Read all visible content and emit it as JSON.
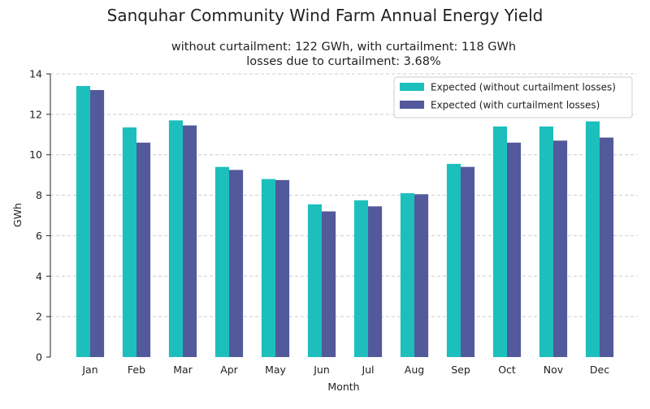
{
  "chart_data": {
    "type": "bar",
    "title": "Sanquhar Community Wind Farm Annual Energy Yield",
    "subtitle_lines": [
      "without curtailment: 122 GWh, with curtailment: 118 GWh",
      "losses due to curtailment: 3.68%"
    ],
    "xlabel": "Month",
    "ylabel": "GWh",
    "ylim": [
      0,
      14
    ],
    "yticks": [
      0,
      2,
      4,
      6,
      8,
      10,
      12,
      14
    ],
    "grid": "y, dashed",
    "legend_position": "top-right",
    "categories": [
      "Jan",
      "Feb",
      "Mar",
      "Apr",
      "May",
      "Jun",
      "Jul",
      "Aug",
      "Sep",
      "Oct",
      "Nov",
      "Dec"
    ],
    "series": [
      {
        "name": "Expected (without curtailment losses)",
        "color": "#1cbfbb",
        "values": [
          13.4,
          11.35,
          11.7,
          9.4,
          8.8,
          7.55,
          7.75,
          8.1,
          9.55,
          11.4,
          11.4,
          11.65
        ]
      },
      {
        "name": "Expected (with curtailment losses)",
        "color": "#525a9c",
        "values": [
          13.2,
          10.6,
          11.45,
          9.25,
          8.75,
          7.2,
          7.45,
          8.05,
          9.4,
          10.6,
          10.7,
          10.85
        ]
      }
    ]
  }
}
